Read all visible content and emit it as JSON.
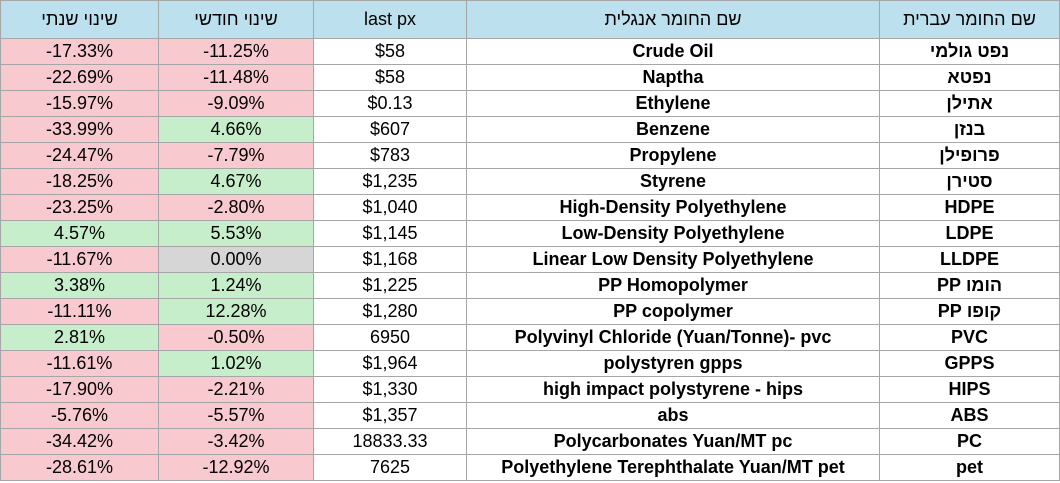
{
  "headers": {
    "yearly_change": "שינוי שנתי",
    "monthly_change": "שינוי חודשי",
    "last_px": "last px",
    "english_name": "שם החומר אנגלית",
    "hebrew_name": "שם החומר עברית"
  },
  "rows": [
    {
      "yearly": "-17.33%",
      "monthly": "-11.25%",
      "last_px": "$58",
      "en": "Crude Oil",
      "he": "נפט גולמי"
    },
    {
      "yearly": "-22.69%",
      "monthly": "-11.48%",
      "last_px": "$58",
      "en": "Naptha",
      "he": "נפטא"
    },
    {
      "yearly": "-15.97%",
      "monthly": "-9.09%",
      "last_px": "$0.13",
      "en": "Ethylene",
      "he": "אתילן"
    },
    {
      "yearly": "-33.99%",
      "monthly": "4.66%",
      "last_px": "$607",
      "en": "Benzene",
      "he": "בנזן"
    },
    {
      "yearly": "-24.47%",
      "monthly": "-7.79%",
      "last_px": "$783",
      "en": "Propylene",
      "he": "פרופילן"
    },
    {
      "yearly": "-18.25%",
      "monthly": "4.67%",
      "last_px": "$1,235",
      "en": "Styrene",
      "he": "סטירן"
    },
    {
      "yearly": "-23.25%",
      "monthly": "-2.80%",
      "last_px": "$1,040",
      "en": "High-Density Polyethylene",
      "he": "HDPE"
    },
    {
      "yearly": "4.57%",
      "monthly": "5.53%",
      "last_px": "$1,145",
      "en": "Low-Density Polyethylene",
      "he": "LDPE"
    },
    {
      "yearly": "-11.67%",
      "monthly": "0.00%",
      "last_px": "$1,168",
      "en": "Linear Low Density Polyethylene",
      "he": "LLDPE"
    },
    {
      "yearly": "3.38%",
      "monthly": "1.24%",
      "last_px": "$1,225",
      "en": "PP Homopolymer",
      "he": "הומו PP"
    },
    {
      "yearly": "-11.11%",
      "monthly": "12.28%",
      "last_px": "$1,280",
      "en": "PP copolymer",
      "he": "קופו PP"
    },
    {
      "yearly": "2.81%",
      "monthly": "-0.50%",
      "last_px": "6950",
      "en": "Polyvinyl Chloride  (Yuan/Tonne)- pvc",
      "he": "PVC"
    },
    {
      "yearly": "-11.61%",
      "monthly": "1.02%",
      "last_px": "$1,964",
      "en": "polystyren gpps",
      "he": "GPPS"
    },
    {
      "yearly": "-17.90%",
      "monthly": "-2.21%",
      "last_px": "$1,330",
      "en": "high impact polystyrene - hips",
      "he": "HIPS"
    },
    {
      "yearly": "-5.76%",
      "monthly": "-5.57%",
      "last_px": "$1,357",
      "en": "abs",
      "he": "ABS"
    },
    {
      "yearly": "-34.42%",
      "monthly": "-3.42%",
      "last_px": "18833.33",
      "en": "Polycarbonates   Yuan/MT pc",
      "he": "PC"
    },
    {
      "yearly": "-28.61%",
      "monthly": "-12.92%",
      "last_px": "7625",
      "en": "Polyethylene Terephthalate  Yuan/MT pet",
      "he": "pet"
    }
  ],
  "colors": {
    "header_bg": "#bde0ee",
    "negative_bg": "#f8c9cf",
    "positive_bg": "#c7eecb",
    "zero_bg": "#d6d6d6"
  }
}
